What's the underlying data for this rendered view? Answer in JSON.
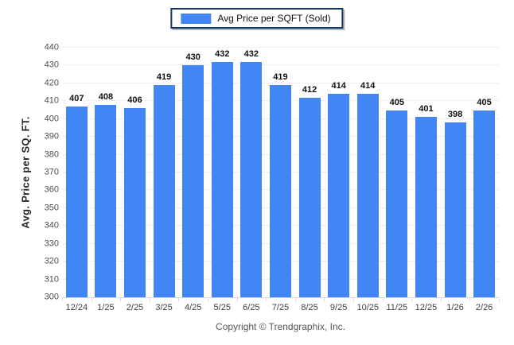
{
  "legend": {
    "label": "Avg Price per SQFT (Sold)",
    "swatch_color": "#4285F4",
    "border_color": "#17375E"
  },
  "footer": {
    "text": "Copyright © Trendgraphix, Inc."
  },
  "chart_data": {
    "type": "bar",
    "title": "",
    "xlabel": "",
    "ylabel": "Avg. Price per SQ. FT.",
    "categories": [
      "12/24",
      "1/25",
      "2/25",
      "3/25",
      "4/25",
      "5/25",
      "6/25",
      "7/25",
      "8/25",
      "9/25",
      "10/25",
      "11/25",
      "12/25",
      "1/26",
      "2/26"
    ],
    "values": [
      407,
      408,
      406,
      419,
      430,
      432,
      432,
      419,
      412,
      414,
      414,
      405,
      401,
      398,
      405
    ],
    "series_name": "Avg Price per SQFT (Sold)",
    "ylim": [
      300,
      440
    ],
    "ytick_step": 10,
    "grid": "horizontal",
    "legend_position": "top-center",
    "bar_color": "#4285F4",
    "gridline_color": "#efefef",
    "axis_line_color": "#d9d9d9",
    "value_label_color": "#111111",
    "tick_label_color": "#404040"
  }
}
